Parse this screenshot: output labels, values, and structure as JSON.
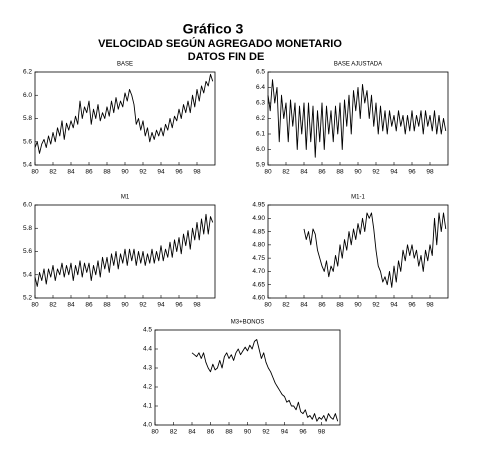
{
  "header": {
    "title": "Gráfico 3",
    "subtitle": "VELOCIDAD SEGÚN AGREGADO MONETARIO",
    "subtitle2": "DATOS FIN DE"
  },
  "chart_data": [
    {
      "type": "line",
      "title": "BASE",
      "color": "#000000",
      "x": [
        80,
        80.25,
        80.5,
        80.75,
        81,
        81.25,
        81.5,
        81.75,
        82,
        82.25,
        82.5,
        82.75,
        83,
        83.25,
        83.5,
        83.75,
        84,
        84.25,
        84.5,
        84.75,
        85,
        85.25,
        85.5,
        85.75,
        86,
        86.25,
        86.5,
        86.75,
        87,
        87.25,
        87.5,
        87.75,
        88,
        88.25,
        88.5,
        88.75,
        89,
        89.25,
        89.5,
        89.75,
        90,
        90.25,
        90.5,
        90.75,
        91,
        91.25,
        91.5,
        91.75,
        92,
        92.25,
        92.5,
        92.75,
        93,
        93.25,
        93.5,
        93.75,
        94,
        94.25,
        94.5,
        94.75,
        95,
        95.25,
        95.5,
        95.75,
        96,
        96.25,
        96.5,
        96.75,
        97,
        97.25,
        97.5,
        97.75,
        98,
        98.25,
        98.5,
        98.75,
        99,
        99.25,
        99.5,
        99.75
      ],
      "values": [
        5.55,
        5.6,
        5.5,
        5.58,
        5.62,
        5.55,
        5.65,
        5.58,
        5.68,
        5.6,
        5.72,
        5.65,
        5.78,
        5.62,
        5.76,
        5.7,
        5.78,
        5.72,
        5.82,
        5.75,
        5.95,
        5.8,
        5.9,
        5.85,
        5.95,
        5.75,
        5.88,
        5.8,
        5.92,
        5.78,
        5.85,
        5.8,
        5.9,
        5.82,
        5.95,
        5.85,
        5.98,
        5.88,
        5.95,
        5.9,
        6.02,
        5.95,
        6.05,
        6.0,
        5.92,
        5.75,
        5.8,
        5.7,
        5.78,
        5.65,
        5.72,
        5.6,
        5.68,
        5.62,
        5.7,
        5.65,
        5.72,
        5.65,
        5.75,
        5.7,
        5.8,
        5.72,
        5.82,
        5.78,
        5.88,
        5.8,
        5.92,
        5.85,
        5.95,
        5.85,
        6.0,
        5.9,
        6.05,
        5.95,
        6.08,
        6.02,
        6.12,
        6.08,
        6.18,
        6.12
      ],
      "xlim": [
        80,
        100
      ],
      "xticks": [
        80,
        82,
        84,
        86,
        88,
        90,
        92,
        94,
        96,
        98
      ],
      "ylim": [
        5.4,
        6.2
      ],
      "yticks": [
        5.4,
        5.6,
        5.8,
        {
          "value": 6,
          "label": "6.0"
        },
        6.2
      ]
    },
    {
      "type": "line",
      "title": "BASE AJUSTADA",
      "color": "#000000",
      "x": [
        80,
        80.25,
        80.5,
        80.75,
        81,
        81.25,
        81.5,
        81.75,
        82,
        82.25,
        82.5,
        82.75,
        83,
        83.25,
        83.5,
        83.75,
        84,
        84.25,
        84.5,
        84.75,
        85,
        85.25,
        85.5,
        85.75,
        86,
        86.25,
        86.5,
        86.75,
        87,
        87.25,
        87.5,
        87.75,
        88,
        88.25,
        88.5,
        88.75,
        89,
        89.25,
        89.5,
        89.75,
        90,
        90.25,
        90.5,
        90.75,
        91,
        91.25,
        91.5,
        91.75,
        92,
        92.25,
        92.5,
        92.75,
        93,
        93.25,
        93.5,
        93.75,
        94,
        94.25,
        94.5,
        94.75,
        95,
        95.25,
        95.5,
        95.75,
        96,
        96.25,
        96.5,
        96.75,
        97,
        97.25,
        97.5,
        97.75,
        98,
        98.25,
        98.5,
        98.75,
        99,
        99.25,
        99.5,
        99.75
      ],
      "values": [
        6.35,
        6.25,
        6.45,
        6.3,
        6.4,
        6.05,
        6.35,
        6.2,
        6.3,
        6.05,
        6.32,
        6.15,
        6.3,
        6.0,
        6.28,
        6.1,
        6.3,
        6.0,
        6.3,
        6.05,
        6.28,
        5.95,
        6.25,
        6.05,
        6.3,
        6.0,
        6.28,
        6.1,
        6.25,
        6.05,
        6.28,
        6.1,
        6.3,
        6.0,
        6.32,
        6.15,
        6.35,
        6.1,
        6.38,
        6.25,
        6.4,
        6.2,
        6.42,
        6.3,
        6.38,
        6.2,
        6.35,
        6.15,
        6.3,
        6.1,
        6.28,
        6.12,
        6.25,
        6.1,
        6.25,
        6.15,
        6.22,
        6.12,
        6.25,
        6.15,
        6.22,
        6.1,
        6.22,
        6.12,
        6.25,
        6.12,
        6.22,
        6.15,
        6.25,
        6.1,
        6.25,
        6.15,
        6.22,
        6.12,
        6.25,
        6.1,
        6.22,
        6.1,
        6.2,
        6.12
      ],
      "xlim": [
        80,
        100
      ],
      "xticks": [
        80,
        82,
        84,
        86,
        88,
        90,
        92,
        94,
        96,
        98
      ],
      "ylim": [
        5.9,
        6.5
      ],
      "yticks": [
        5.9,
        {
          "value": 6,
          "label": "6.0"
        },
        6.1,
        6.2,
        6.3,
        6.4,
        6.5
      ]
    },
    {
      "type": "line",
      "title": "M1",
      "color": "#000000",
      "x": [
        80,
        80.25,
        80.5,
        80.75,
        81,
        81.25,
        81.5,
        81.75,
        82,
        82.25,
        82.5,
        82.75,
        83,
        83.25,
        83.5,
        83.75,
        84,
        84.25,
        84.5,
        84.75,
        85,
        85.25,
        85.5,
        85.75,
        86,
        86.25,
        86.5,
        86.75,
        87,
        87.25,
        87.5,
        87.75,
        88,
        88.25,
        88.5,
        88.75,
        89,
        89.25,
        89.5,
        89.75,
        90,
        90.25,
        90.5,
        90.75,
        91,
        91.25,
        91.5,
        91.75,
        92,
        92.25,
        92.5,
        92.75,
        93,
        93.25,
        93.5,
        93.75,
        94,
        94.25,
        94.5,
        94.75,
        95,
        95.25,
        95.5,
        95.75,
        96,
        96.25,
        96.5,
        96.75,
        97,
        97.25,
        97.5,
        97.75,
        98,
        98.25,
        98.5,
        98.75,
        99,
        99.25,
        99.5,
        99.75
      ],
      "values": [
        5.38,
        5.3,
        5.42,
        5.35,
        5.45,
        5.32,
        5.45,
        5.38,
        5.48,
        5.35,
        5.45,
        5.4,
        5.5,
        5.38,
        5.48,
        5.4,
        5.5,
        5.35,
        5.48,
        5.4,
        5.52,
        5.38,
        5.5,
        5.42,
        5.5,
        5.35,
        5.48,
        5.4,
        5.52,
        5.38,
        5.55,
        5.45,
        5.55,
        5.42,
        5.58,
        5.48,
        5.6,
        5.45,
        5.58,
        5.5,
        5.62,
        5.48,
        5.62,
        5.52,
        5.62,
        5.48,
        5.6,
        5.5,
        5.6,
        5.48,
        5.58,
        5.5,
        5.62,
        5.5,
        5.6,
        5.52,
        5.65,
        5.52,
        5.62,
        5.55,
        5.68,
        5.55,
        5.7,
        5.6,
        5.72,
        5.58,
        5.75,
        5.65,
        5.78,
        5.62,
        5.8,
        5.7,
        5.85,
        5.7,
        5.88,
        5.75,
        5.92,
        5.75,
        5.9,
        5.85
      ],
      "xlim": [
        80,
        100
      ],
      "xticks": [
        80,
        82,
        84,
        86,
        88,
        90,
        92,
        94,
        96,
        98
      ],
      "ylim": [
        5.2,
        6.0
      ],
      "yticks": [
        5.2,
        5.4,
        5.6,
        5.8,
        {
          "value": 6,
          "label": "6.0"
        }
      ]
    },
    {
      "type": "line",
      "title": "M1-1",
      "color": "#000000",
      "x": [
        84,
        84.25,
        84.5,
        84.75,
        85,
        85.25,
        85.5,
        85.75,
        86,
        86.25,
        86.5,
        86.75,
        87,
        87.25,
        87.5,
        87.75,
        88,
        88.25,
        88.5,
        88.75,
        89,
        89.25,
        89.5,
        89.75,
        90,
        90.25,
        90.5,
        90.75,
        91,
        91.25,
        91.5,
        91.75,
        92,
        92.25,
        92.5,
        92.75,
        93,
        93.25,
        93.5,
        93.75,
        94,
        94.25,
        94.5,
        94.75,
        95,
        95.25,
        95.5,
        95.75,
        96,
        96.25,
        96.5,
        96.75,
        97,
        97.25,
        97.5,
        97.75,
        98,
        98.25,
        98.5,
        98.75,
        99,
        99.25,
        99.5,
        99.75
      ],
      "values": [
        4.86,
        4.82,
        4.85,
        4.8,
        4.86,
        4.84,
        4.78,
        4.75,
        4.72,
        4.7,
        4.74,
        4.68,
        4.72,
        4.7,
        4.76,
        4.72,
        4.8,
        4.75,
        4.82,
        4.78,
        4.85,
        4.8,
        4.86,
        4.82,
        4.88,
        4.84,
        4.9,
        4.85,
        4.92,
        4.9,
        4.92,
        4.86,
        4.78,
        4.72,
        4.7,
        4.66,
        4.68,
        4.65,
        4.7,
        4.64,
        4.72,
        4.66,
        4.74,
        4.7,
        4.78,
        4.74,
        4.8,
        4.76,
        4.8,
        4.75,
        4.78,
        4.72,
        4.76,
        4.7,
        4.78,
        4.74,
        4.8,
        4.76,
        4.9,
        4.8,
        4.92,
        4.85,
        4.92,
        4.86
      ],
      "xlim": [
        80,
        100
      ],
      "xticks": [
        80,
        82,
        84,
        86,
        88,
        90,
        92,
        94,
        96,
        98
      ],
      "ylim": [
        4.6,
        4.95
      ],
      "yticks": [
        {
          "value": 4.6,
          "label": "4.60"
        },
        4.65,
        {
          "value": 4.7,
          "label": "4.70"
        },
        4.75,
        {
          "value": 4.8,
          "label": "4.80"
        },
        4.85,
        {
          "value": 4.9,
          "label": "4.90"
        },
        4.95
      ]
    },
    {
      "type": "line",
      "title": "M3+BONOS",
      "color": "#000000",
      "x": [
        84,
        84.25,
        84.5,
        84.75,
        85,
        85.25,
        85.5,
        85.75,
        86,
        86.25,
        86.5,
        86.75,
        87,
        87.25,
        87.5,
        87.75,
        88,
        88.25,
        88.5,
        88.75,
        89,
        89.25,
        89.5,
        89.75,
        90,
        90.25,
        90.5,
        90.75,
        91,
        91.25,
        91.5,
        91.75,
        92,
        92.25,
        92.5,
        92.75,
        93,
        93.25,
        93.5,
        93.75,
        94,
        94.25,
        94.5,
        94.75,
        95,
        95.25,
        95.5,
        95.75,
        96,
        96.25,
        96.5,
        96.75,
        97,
        97.25,
        97.5,
        97.75,
        98,
        98.25,
        98.5,
        98.75,
        99,
        99.25,
        99.5,
        99.75
      ],
      "values": [
        4.38,
        4.37,
        4.36,
        4.38,
        4.35,
        4.38,
        4.33,
        4.3,
        4.28,
        4.32,
        4.29,
        4.3,
        4.34,
        4.3,
        4.36,
        4.38,
        4.35,
        4.37,
        4.34,
        4.38,
        4.4,
        4.37,
        4.39,
        4.41,
        4.39,
        4.42,
        4.4,
        4.44,
        4.45,
        4.4,
        4.35,
        4.38,
        4.33,
        4.3,
        4.28,
        4.25,
        4.22,
        4.2,
        4.18,
        4.16,
        4.15,
        4.12,
        4.13,
        4.1,
        4.1,
        4.08,
        4.12,
        4.07,
        4.06,
        4.08,
        4.04,
        4.05,
        4.03,
        4.06,
        4.02,
        4.04,
        4.03,
        4.05,
        4.02,
        4.06,
        4.04,
        4.03,
        4.06,
        4.02
      ],
      "xlim": [
        80,
        100
      ],
      "xticks": [
        80,
        82,
        84,
        86,
        88,
        90,
        92,
        94,
        96,
        98
      ],
      "ylim": [
        4.0,
        4.5
      ],
      "yticks": [
        {
          "value": 4,
          "label": "4.0"
        },
        4.1,
        4.2,
        4.3,
        4.4,
        4.5
      ]
    }
  ]
}
